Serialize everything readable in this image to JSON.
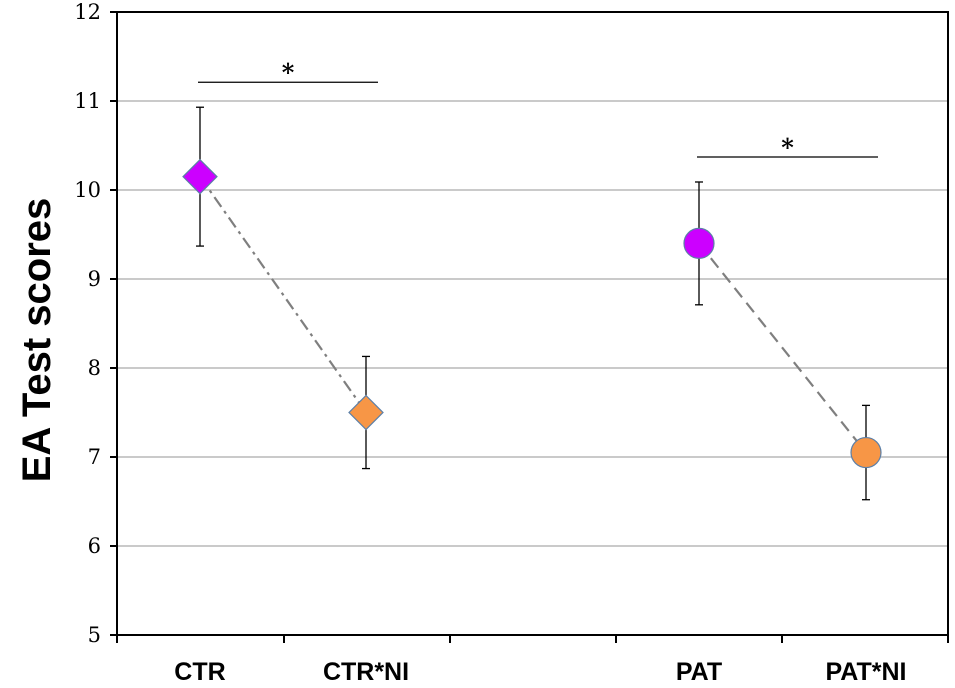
{
  "chart_data": {
    "type": "scatter",
    "ylabel": "EA  Test  scores",
    "xlabel": "",
    "ylim": [
      5,
      12
    ],
    "yticks": [
      5,
      6,
      7,
      8,
      9,
      10,
      11,
      12
    ],
    "grid": true,
    "categories": [
      "CTR",
      "CTR*NI",
      "PAT",
      "PAT*NI"
    ],
    "points": [
      {
        "category": "CTR",
        "value": 10.15,
        "error": 0.78,
        "marker": "diamond",
        "color": "#cc00ff"
      },
      {
        "category": "CTR*NI",
        "value": 7.5,
        "error": 0.63,
        "marker": "diamond",
        "color": "#f79646"
      },
      {
        "category": "PAT",
        "value": 9.4,
        "error": 0.69,
        "marker": "circle",
        "color": "#cc00ff"
      },
      {
        "category": "PAT*NI",
        "value": 7.05,
        "error": 0.53,
        "marker": "circle",
        "color": "#f79646"
      }
    ],
    "connectors": [
      {
        "from": "CTR",
        "to": "CTR*NI",
        "style": "dash-dot"
      },
      {
        "from": "PAT",
        "to": "PAT*NI",
        "style": "dashed"
      }
    ],
    "significance": [
      {
        "from": "CTR",
        "to": "CTR*NI",
        "label": "*"
      },
      {
        "from": "PAT",
        "to": "PAT*NI",
        "label": "*"
      }
    ]
  }
}
